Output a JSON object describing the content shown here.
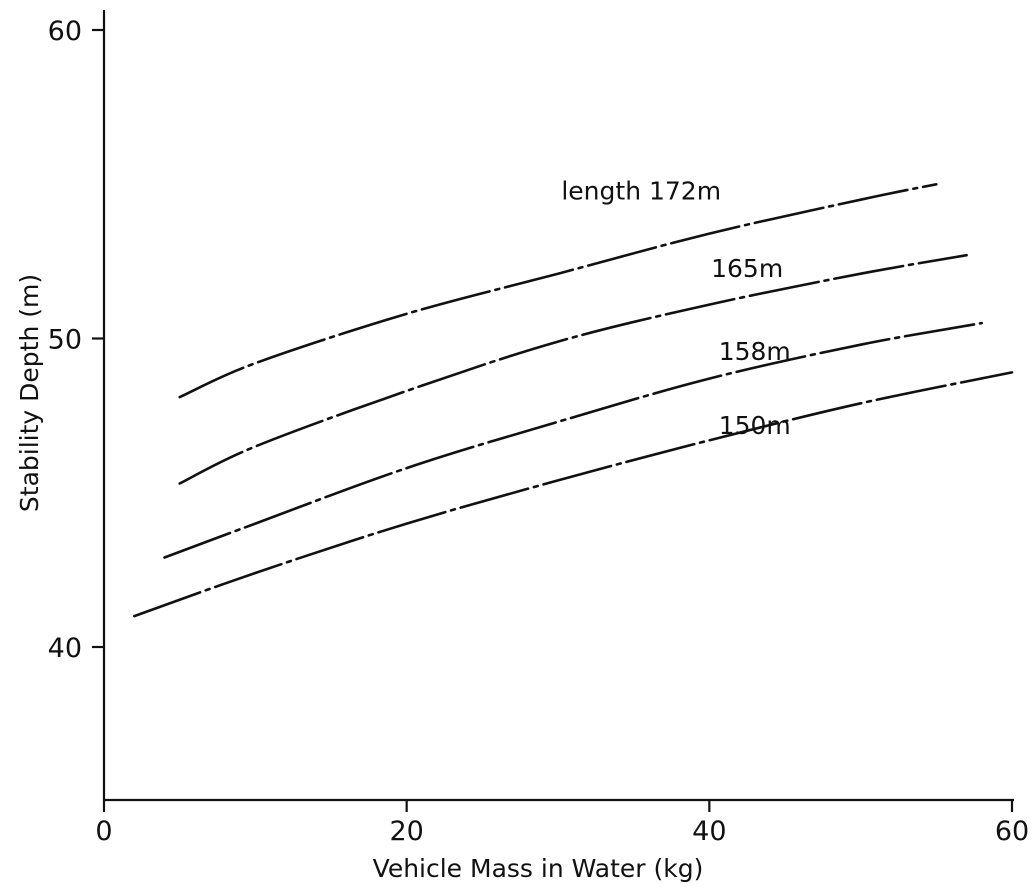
{
  "chart_data": {
    "type": "line",
    "title": "",
    "xlabel": "Vehicle Mass in Water (kg)",
    "ylabel": "Stability Depth (m)",
    "xlim": [
      0,
      60
    ],
    "ylim": [
      35,
      60
    ],
    "x_ticks": [
      0,
      20,
      40,
      60
    ],
    "y_ticks": [
      40,
      50,
      60
    ],
    "x_tick_labels": [
      "0",
      "20",
      "40",
      "60"
    ],
    "y_tick_labels": [
      "40",
      "50",
      "60"
    ],
    "grid": false,
    "line_style": "dash-dot",
    "series": [
      {
        "name": "length 172m",
        "x": [
          5,
          10,
          20,
          30,
          40,
          50,
          55
        ],
        "y": [
          48.1,
          49.2,
          50.8,
          52.1,
          53.4,
          54.5,
          55.0
        ]
      },
      {
        "name": "165m",
        "x": [
          5,
          10,
          20,
          30,
          40,
          50,
          57
        ],
        "y": [
          45.3,
          46.5,
          48.3,
          49.9,
          51.1,
          52.1,
          52.7
        ]
      },
      {
        "name": "158m",
        "x": [
          4,
          10,
          20,
          30,
          40,
          50,
          58
        ],
        "y": [
          42.9,
          44.0,
          45.8,
          47.3,
          48.7,
          49.8,
          50.5
        ]
      },
      {
        "name": "150m",
        "x": [
          2,
          10,
          20,
          30,
          40,
          50,
          60
        ],
        "y": [
          41.0,
          42.4,
          44.0,
          45.4,
          46.7,
          47.9,
          48.9
        ]
      }
    ]
  }
}
